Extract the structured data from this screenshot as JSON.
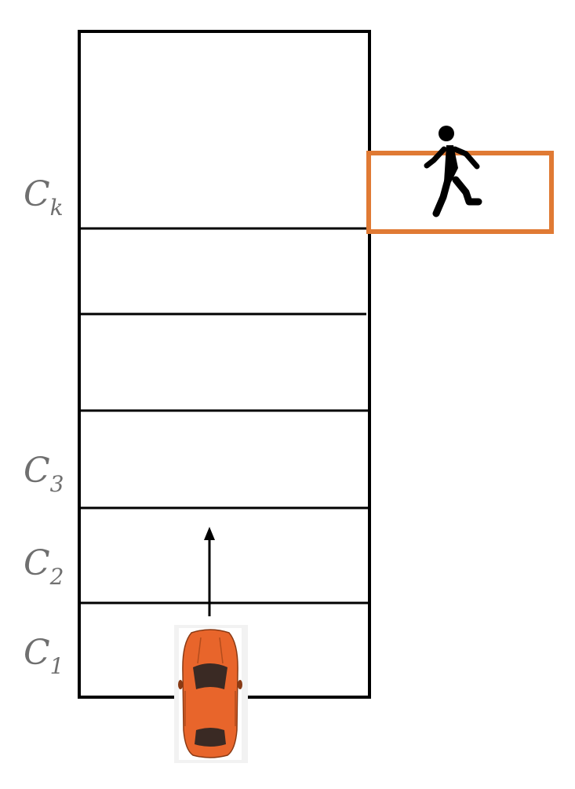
{
  "labels": {
    "c1": {
      "base": "C",
      "sub": "1"
    },
    "c2": {
      "base": "C",
      "sub": "2"
    },
    "c3": {
      "base": "C",
      "sub": "3"
    },
    "ck": {
      "base": "C",
      "sub": "k"
    }
  },
  "icons": {
    "car": "car-top-view-icon",
    "pedestrian": "running-pedestrian-icon",
    "arrow": "up-arrow-icon"
  },
  "colors": {
    "grid": "#000000",
    "highlight": "#e07a34",
    "car_body": "#e8652b",
    "label": "#6f6f6f"
  }
}
